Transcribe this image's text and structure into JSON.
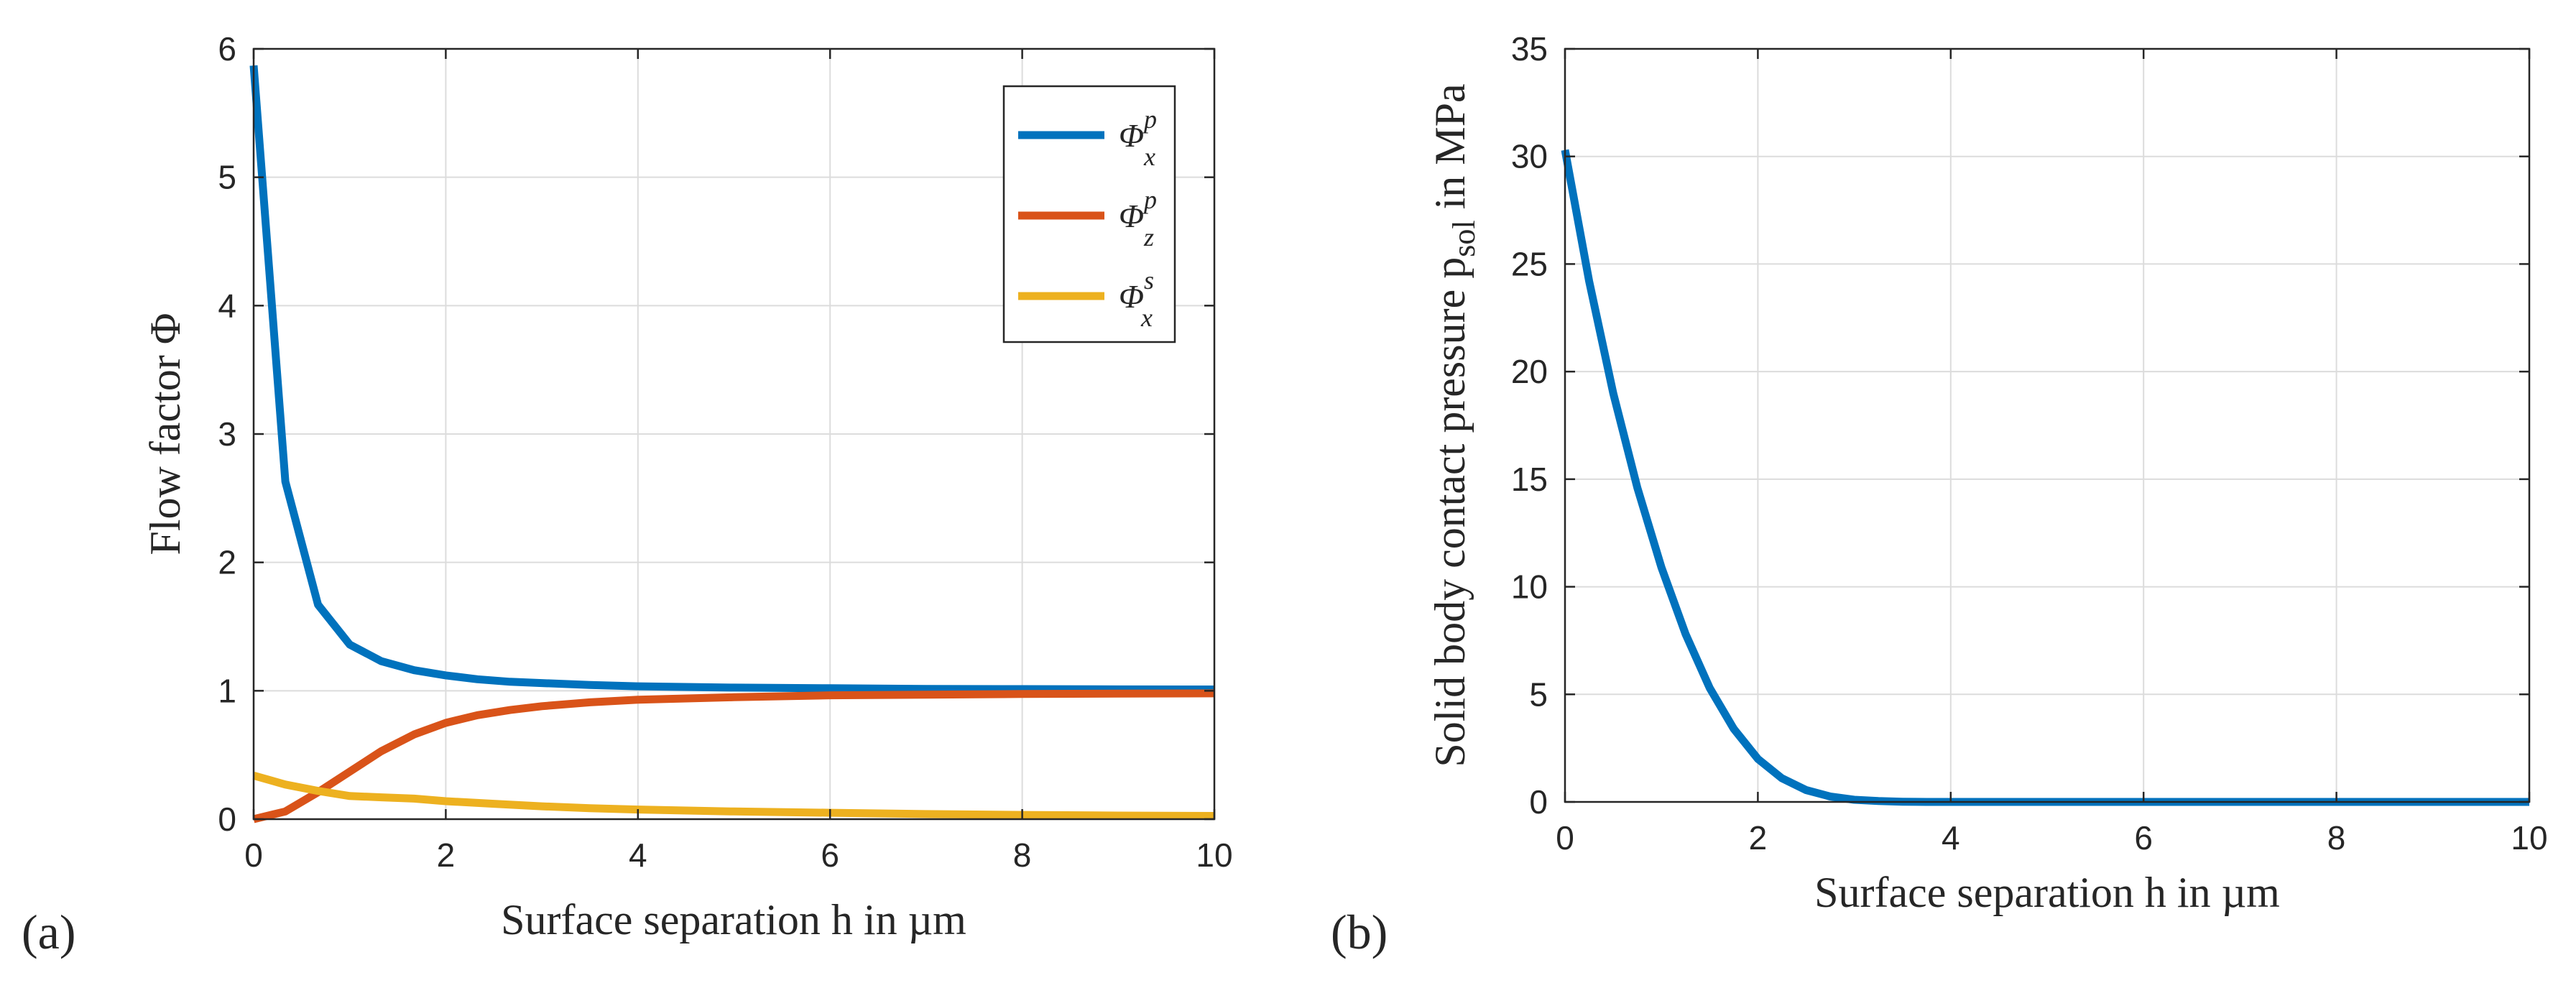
{
  "panels": [
    {
      "label": "(a)"
    },
    {
      "label": "(b)"
    }
  ],
  "chart_data": [
    {
      "type": "line",
      "xlabel": "Surface separation h in µm",
      "ylabel": "Flow factor Φ",
      "xlim": [
        0,
        10
      ],
      "ylim": [
        0,
        6
      ],
      "xticks": [
        0,
        2,
        4,
        6,
        8,
        10
      ],
      "yticks": [
        0,
        1,
        2,
        3,
        4,
        5,
        6
      ],
      "grid": true,
      "legend_position": "top-right",
      "series": [
        {
          "name": "Φ",
          "name_sup": "p",
          "name_sub": "x",
          "color": "#0072BD",
          "x": [
            0,
            0.33,
            0.67,
            1.0,
            1.33,
            1.67,
            2.0,
            2.33,
            2.67,
            3.0,
            3.5,
            4.0,
            5.0,
            6.0,
            7.0,
            8.0,
            9.0,
            10.0
          ],
          "y": [
            5.87,
            2.63,
            1.67,
            1.36,
            1.23,
            1.16,
            1.12,
            1.09,
            1.07,
            1.06,
            1.045,
            1.035,
            1.025,
            1.02,
            1.015,
            1.013,
            1.011,
            1.01
          ]
        },
        {
          "name": "Φ",
          "name_sup": "p",
          "name_sub": "z",
          "color": "#D95319",
          "x": [
            0,
            0.33,
            0.67,
            1.0,
            1.33,
            1.67,
            2.0,
            2.33,
            2.67,
            3.0,
            3.5,
            4.0,
            5.0,
            6.0,
            7.0,
            8.0,
            9.0,
            10.0
          ],
          "y": [
            0.0,
            0.06,
            0.21,
            0.37,
            0.53,
            0.66,
            0.75,
            0.81,
            0.85,
            0.88,
            0.91,
            0.93,
            0.95,
            0.965,
            0.97,
            0.975,
            0.978,
            0.98
          ]
        },
        {
          "name": "Φ",
          "name_sup": "s",
          "name_sub": "x",
          "color": "#EDB120",
          "x": [
            0,
            0.33,
            0.67,
            1.0,
            1.33,
            1.67,
            2.0,
            2.5,
            3.0,
            3.5,
            4.0,
            5.0,
            6.0,
            7.0,
            8.0,
            9.0,
            10.0
          ],
          "y": [
            0.34,
            0.27,
            0.22,
            0.18,
            0.17,
            0.16,
            0.14,
            0.12,
            0.1,
            0.085,
            0.075,
            0.06,
            0.05,
            0.04,
            0.033,
            0.028,
            0.025
          ]
        }
      ]
    },
    {
      "type": "line",
      "xlabel": "Surface separation h in µm",
      "ylabel": "Solid body contact pressure p",
      "ylabel_sub": "sol",
      "ylabel_suffix": " in MPa",
      "xlim": [
        0,
        10
      ],
      "ylim": [
        0,
        35
      ],
      "xticks": [
        0,
        2,
        4,
        6,
        8,
        10
      ],
      "yticks": [
        0,
        5,
        10,
        15,
        20,
        25,
        30,
        35
      ],
      "grid": true,
      "series": [
        {
          "color": "#0072BD",
          "x": [
            0,
            0.25,
            0.5,
            0.75,
            1.0,
            1.25,
            1.5,
            1.75,
            2.0,
            2.25,
            2.5,
            2.75,
            3.0,
            3.25,
            3.5,
            3.75,
            4.0,
            5.0,
            6.0,
            7.0,
            8.0,
            9.0,
            10.0
          ],
          "y": [
            30.3,
            24.2,
            19.0,
            14.6,
            10.9,
            7.8,
            5.3,
            3.4,
            2.0,
            1.1,
            0.55,
            0.25,
            0.1,
            0.04,
            0.01,
            0.0,
            0.0,
            0.0,
            0.0,
            0.0,
            0.0,
            0.0,
            0.0
          ]
        }
      ]
    }
  ]
}
